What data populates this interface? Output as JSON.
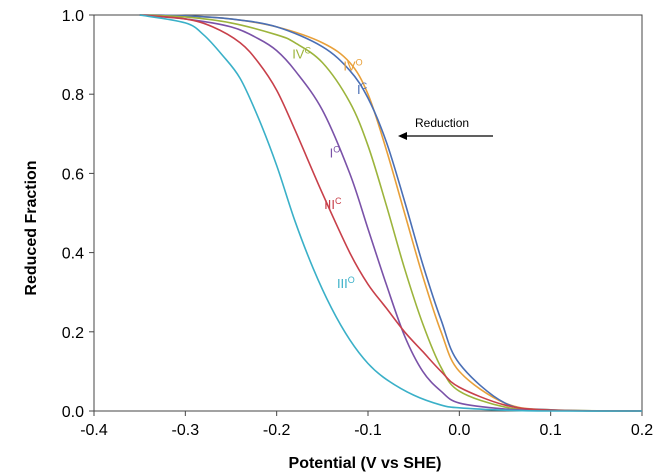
{
  "chart_data": {
    "type": "line",
    "title": "",
    "xlabel": "Potential (V vs SHE)",
    "ylabel": "Reduced Fraction",
    "xlim": [
      -0.4,
      0.2
    ],
    "ylim": [
      0.0,
      1.0
    ],
    "x_ticks": [
      "-0.4",
      "-0.3",
      "-0.2",
      "-0.1",
      "0.0",
      "0.1",
      "0.2"
    ],
    "y_ticks": [
      "0.0",
      "0.2",
      "0.4",
      "0.6",
      "0.8",
      "1.0"
    ],
    "grid": false,
    "annotation": {
      "text": "Reduction",
      "arrow_direction": "left"
    },
    "series": [
      {
        "name": "IVᴼ",
        "color": "#E8A03A",
        "x": [
          -0.35,
          -0.3,
          -0.25,
          -0.2,
          -0.15,
          -0.12,
          -0.1,
          -0.08,
          -0.06,
          -0.04,
          -0.02,
          0.0,
          0.05,
          0.1,
          0.2
        ],
        "y": [
          1.0,
          0.998,
          0.99,
          0.97,
          0.93,
          0.88,
          0.8,
          0.66,
          0.5,
          0.34,
          0.2,
          0.1,
          0.02,
          0.003,
          0.0
        ]
      },
      {
        "name": "Iᶜ",
        "color": "#4A6FB5",
        "x": [
          -0.35,
          -0.3,
          -0.25,
          -0.2,
          -0.15,
          -0.12,
          -0.1,
          -0.08,
          -0.06,
          -0.04,
          -0.02,
          0.0,
          0.05,
          0.1,
          0.2
        ],
        "y": [
          1.0,
          0.998,
          0.99,
          0.97,
          0.92,
          0.86,
          0.79,
          0.68,
          0.53,
          0.37,
          0.23,
          0.12,
          0.02,
          0.003,
          0.0
        ]
      },
      {
        "name": "IVᶜ",
        "color": "#9CB43C",
        "x": [
          -0.35,
          -0.3,
          -0.25,
          -0.2,
          -0.18,
          -0.15,
          -0.12,
          -0.1,
          -0.08,
          -0.06,
          -0.04,
          -0.02,
          0.0,
          0.05,
          0.1,
          0.2
        ],
        "y": [
          1.0,
          0.995,
          0.98,
          0.95,
          0.93,
          0.88,
          0.78,
          0.67,
          0.52,
          0.36,
          0.22,
          0.11,
          0.05,
          0.01,
          0.002,
          0.0
        ]
      },
      {
        "name": "Iᴼ",
        "color": "#7A52A8",
        "x": [
          -0.35,
          -0.3,
          -0.25,
          -0.22,
          -0.2,
          -0.18,
          -0.15,
          -0.12,
          -0.1,
          -0.08,
          -0.06,
          -0.04,
          -0.02,
          0.0,
          0.05,
          0.1,
          0.2
        ],
        "y": [
          1.0,
          0.99,
          0.97,
          0.94,
          0.91,
          0.86,
          0.76,
          0.6,
          0.46,
          0.32,
          0.19,
          0.1,
          0.05,
          0.02,
          0.005,
          0.001,
          0.0
        ]
      },
      {
        "name": "IIIᶜ",
        "color": "#C8404A",
        "x": [
          -0.35,
          -0.3,
          -0.27,
          -0.24,
          -0.22,
          -0.2,
          -0.18,
          -0.15,
          -0.12,
          -0.1,
          -0.08,
          -0.06,
          -0.04,
          -0.02,
          0.0,
          0.05,
          0.1,
          0.2
        ],
        "y": [
          1.0,
          0.99,
          0.97,
          0.93,
          0.88,
          0.81,
          0.71,
          0.55,
          0.4,
          0.32,
          0.26,
          0.2,
          0.15,
          0.1,
          0.06,
          0.015,
          0.002,
          0.0
        ]
      },
      {
        "name": "IIIᴼ",
        "color": "#3AB0C8",
        "x": [
          -0.35,
          -0.3,
          -0.28,
          -0.26,
          -0.24,
          -0.22,
          -0.2,
          -0.18,
          -0.16,
          -0.14,
          -0.12,
          -0.1,
          -0.08,
          -0.05,
          -0.02,
          0.0,
          0.05,
          0.1,
          0.2
        ],
        "y": [
          1.0,
          0.98,
          0.95,
          0.9,
          0.84,
          0.74,
          0.62,
          0.48,
          0.36,
          0.26,
          0.18,
          0.12,
          0.08,
          0.04,
          0.015,
          0.008,
          0.002,
          0.0,
          0.0
        ]
      }
    ]
  },
  "label_text": {
    "IVᴼ": {
      "main": "IV",
      "sup": "O"
    },
    "Iᶜ": {
      "main": "I",
      "sup": "C"
    },
    "IVᶜ": {
      "main": "IV",
      "sup": "C"
    },
    "Iᴼ": {
      "main": "I",
      "sup": "O"
    },
    "IIIᶜ": {
      "main": "III",
      "sup": "C"
    },
    "IIIᴼ": {
      "main": "III",
      "sup": "O"
    }
  }
}
